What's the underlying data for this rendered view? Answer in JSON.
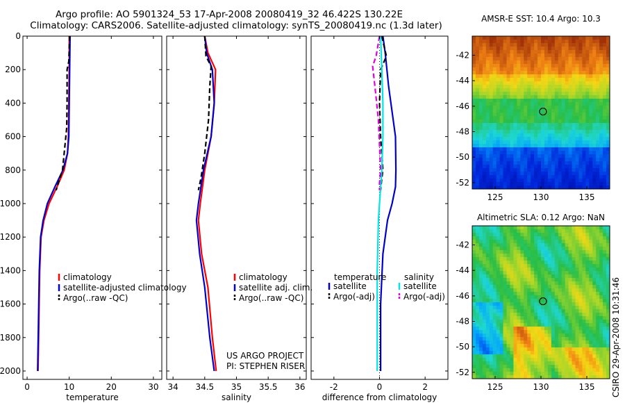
{
  "header": {
    "line1": "Argo profile: AO 5901324_53 17-Apr-2008 20080419_32 46.422S 130.22E",
    "line2": "Climatology: CARS2006. Satellite-adjusted climatology: synTS_20080419.nc (1.3d later)"
  },
  "footer_note": {
    "line1": "US ARGO PROJECT",
    "line2": "PI: STEPHEN RISER"
  },
  "side_label": "CSIRO 29-Apr-2008 10:31:46",
  "colors": {
    "climatology": "#ff0000",
    "satellite": "#0000cc",
    "argo": "#000000",
    "cyan": "#00e5e5",
    "magenta": "#e000e0"
  },
  "chart_data": [
    {
      "type": "line",
      "xlabel": "temperature",
      "ylabel": "",
      "xlim": [
        -1,
        32
      ],
      "ylim": [
        2050,
        0
      ],
      "xticks": [
        "0",
        "10",
        "20",
        "30"
      ],
      "yticks": [
        "0",
        "200",
        "400",
        "600",
        "800",
        "1000",
        "1200",
        "1400",
        "1600",
        "1800",
        "2000"
      ],
      "legend": [
        "climatology",
        "satellite-adjusted climatology",
        "Argo(..raw -QC)"
      ],
      "legend_position": "lower-left",
      "series": [
        {
          "name": "climatology",
          "color": "#ff0000",
          "style": "solid",
          "x": [
            10,
            10,
            9.9,
            9.8,
            9.6,
            8.8,
            7.1,
            5.2,
            4.0,
            3.3,
            3.0,
            2.8,
            2.6
          ],
          "y": [
            0,
            200,
            400,
            600,
            700,
            800,
            900,
            1000,
            1100,
            1200,
            1400,
            1700,
            2000
          ]
        },
        {
          "name": "satellite-adjusted climatology",
          "color": "#0000cc",
          "style": "solid",
          "x": [
            10.2,
            10.1,
            10.0,
            9.9,
            9.6,
            8.5,
            6.6,
            4.8,
            3.8,
            3.2,
            2.9,
            2.7,
            2.5
          ],
          "y": [
            0,
            200,
            400,
            600,
            700,
            800,
            900,
            1000,
            1100,
            1200,
            1400,
            1700,
            2000
          ]
        },
        {
          "name": "Argo(..raw -QC)",
          "color": "#000000",
          "style": "dashed",
          "x": [
            10.1,
            9.9,
            9.5,
            9.5,
            9.4,
            9.0,
            8.4,
            7.5,
            6.9
          ],
          "y": [
            0,
            150,
            200,
            400,
            550,
            650,
            800,
            870,
            920
          ]
        }
      ]
    },
    {
      "type": "line",
      "xlabel": "salinity",
      "ylabel": "",
      "xlim": [
        33.9,
        36.1
      ],
      "ylim": [
        2050,
        0
      ],
      "xticks": [
        "34",
        "34.5",
        "35",
        "35.5",
        "36"
      ],
      "legend": [
        "climatology",
        "satellite adj. clim.",
        "Argo(..raw -QC)"
      ],
      "legend_position": "lower-right",
      "series": [
        {
          "name": "climatology",
          "color": "#ff0000",
          "style": "solid",
          "x": [
            34.5,
            34.55,
            34.67,
            34.65,
            34.6,
            34.5,
            34.43,
            34.4,
            34.45,
            34.55,
            34.62,
            34.68
          ],
          "y": [
            0,
            100,
            200,
            400,
            600,
            800,
            1000,
            1100,
            1300,
            1500,
            1800,
            2000
          ]
        },
        {
          "name": "satellite adj. clim.",
          "color": "#0000cc",
          "style": "solid",
          "x": [
            34.5,
            34.53,
            34.62,
            34.65,
            34.6,
            34.48,
            34.4,
            34.37,
            34.42,
            34.5,
            34.58,
            34.65
          ],
          "y": [
            0,
            100,
            200,
            400,
            600,
            800,
            1000,
            1100,
            1300,
            1500,
            1800,
            2000
          ]
        },
        {
          "name": "Argo(..raw -QC)",
          "color": "#000000",
          "style": "dashed",
          "x": [
            34.5,
            34.52,
            34.6,
            34.58,
            34.56,
            34.5,
            34.44,
            34.4
          ],
          "y": [
            0,
            120,
            180,
            300,
            500,
            700,
            850,
            920
          ]
        }
      ]
    },
    {
      "type": "line",
      "xlabel": "difference from climatology",
      "ylabel": "",
      "xlim": [
        -3,
        3
      ],
      "ylim": [
        2050,
        0
      ],
      "xticks": [
        "-2",
        "0",
        "2"
      ],
      "legend_left_header": "temperature",
      "legend_right_header": "salinity",
      "legend_left": [
        "satellite",
        "Argo(-adj)"
      ],
      "legend_right": [
        "satellite",
        "Argo(-adj)"
      ],
      "legend_position": "lower-center",
      "series": [
        {
          "name": "temperature satellite",
          "color": "#0000cc",
          "style": "solid",
          "x": [
            0.15,
            0.25,
            0.4,
            0.6,
            0.7,
            0.72,
            0.7,
            0.55,
            0.35,
            0.15,
            0.05,
            0.05
          ],
          "y": [
            0,
            100,
            300,
            500,
            600,
            800,
            900,
            1000,
            1100,
            1300,
            1600,
            2000
          ]
        },
        {
          "name": "temperature Argo(-adj)",
          "color": "#000000",
          "style": "dashed",
          "x": [
            0.1,
            0.3,
            0.05,
            0.0,
            0.05,
            0.1,
            0.15,
            0.1,
            0.05
          ],
          "y": [
            0,
            120,
            200,
            400,
            600,
            700,
            800,
            850,
            920
          ]
        },
        {
          "name": "salinity satellite",
          "color": "#00e5e5",
          "style": "solid",
          "x": [
            0.05,
            0.1,
            0.15,
            0.15,
            0.1,
            0.0,
            -0.05,
            -0.1,
            -0.1,
            -0.1
          ],
          "y": [
            0,
            200,
            400,
            600,
            800,
            1000,
            1100,
            1400,
            1700,
            2000
          ]
        },
        {
          "name": "salinity Argo(-adj)",
          "color": "#e000e0",
          "style": "dashed",
          "x": [
            0.0,
            -0.15,
            -0.3,
            -0.2,
            -0.05,
            0.0,
            0.05,
            0.0,
            0.0
          ],
          "y": [
            0,
            120,
            180,
            300,
            500,
            650,
            800,
            880,
            920
          ]
        }
      ]
    },
    {
      "type": "heatmap",
      "title": "AMSR-E SST: 10.4 Argo: 10.3",
      "xlim": [
        122.5,
        137.5
      ],
      "ylim": [
        -52.5,
        -40.5
      ],
      "xticks": [
        "125",
        "130",
        "135"
      ],
      "yticks": [
        "-42",
        "-44",
        "-46",
        "-48",
        "-50",
        "-52"
      ],
      "marker": {
        "lon": 130.22,
        "lat": -46.422
      },
      "description": "SST warm (red) in north, green mid-band, blue/navy in south"
    },
    {
      "type": "heatmap",
      "title": "Altimetric SLA: 0.12 Argo: NaN",
      "xlim": [
        122.5,
        137.5
      ],
      "ylim": [
        -52.5,
        -40.5
      ],
      "xticks": [
        "125",
        "130",
        "135"
      ],
      "yticks": [
        "-42",
        "-44",
        "-46",
        "-48",
        "-50",
        "-52"
      ],
      "marker": {
        "lon": 130.22,
        "lat": -46.422
      },
      "description": "Mostly green/yellow field with cyan patches west and orange patches south"
    }
  ]
}
